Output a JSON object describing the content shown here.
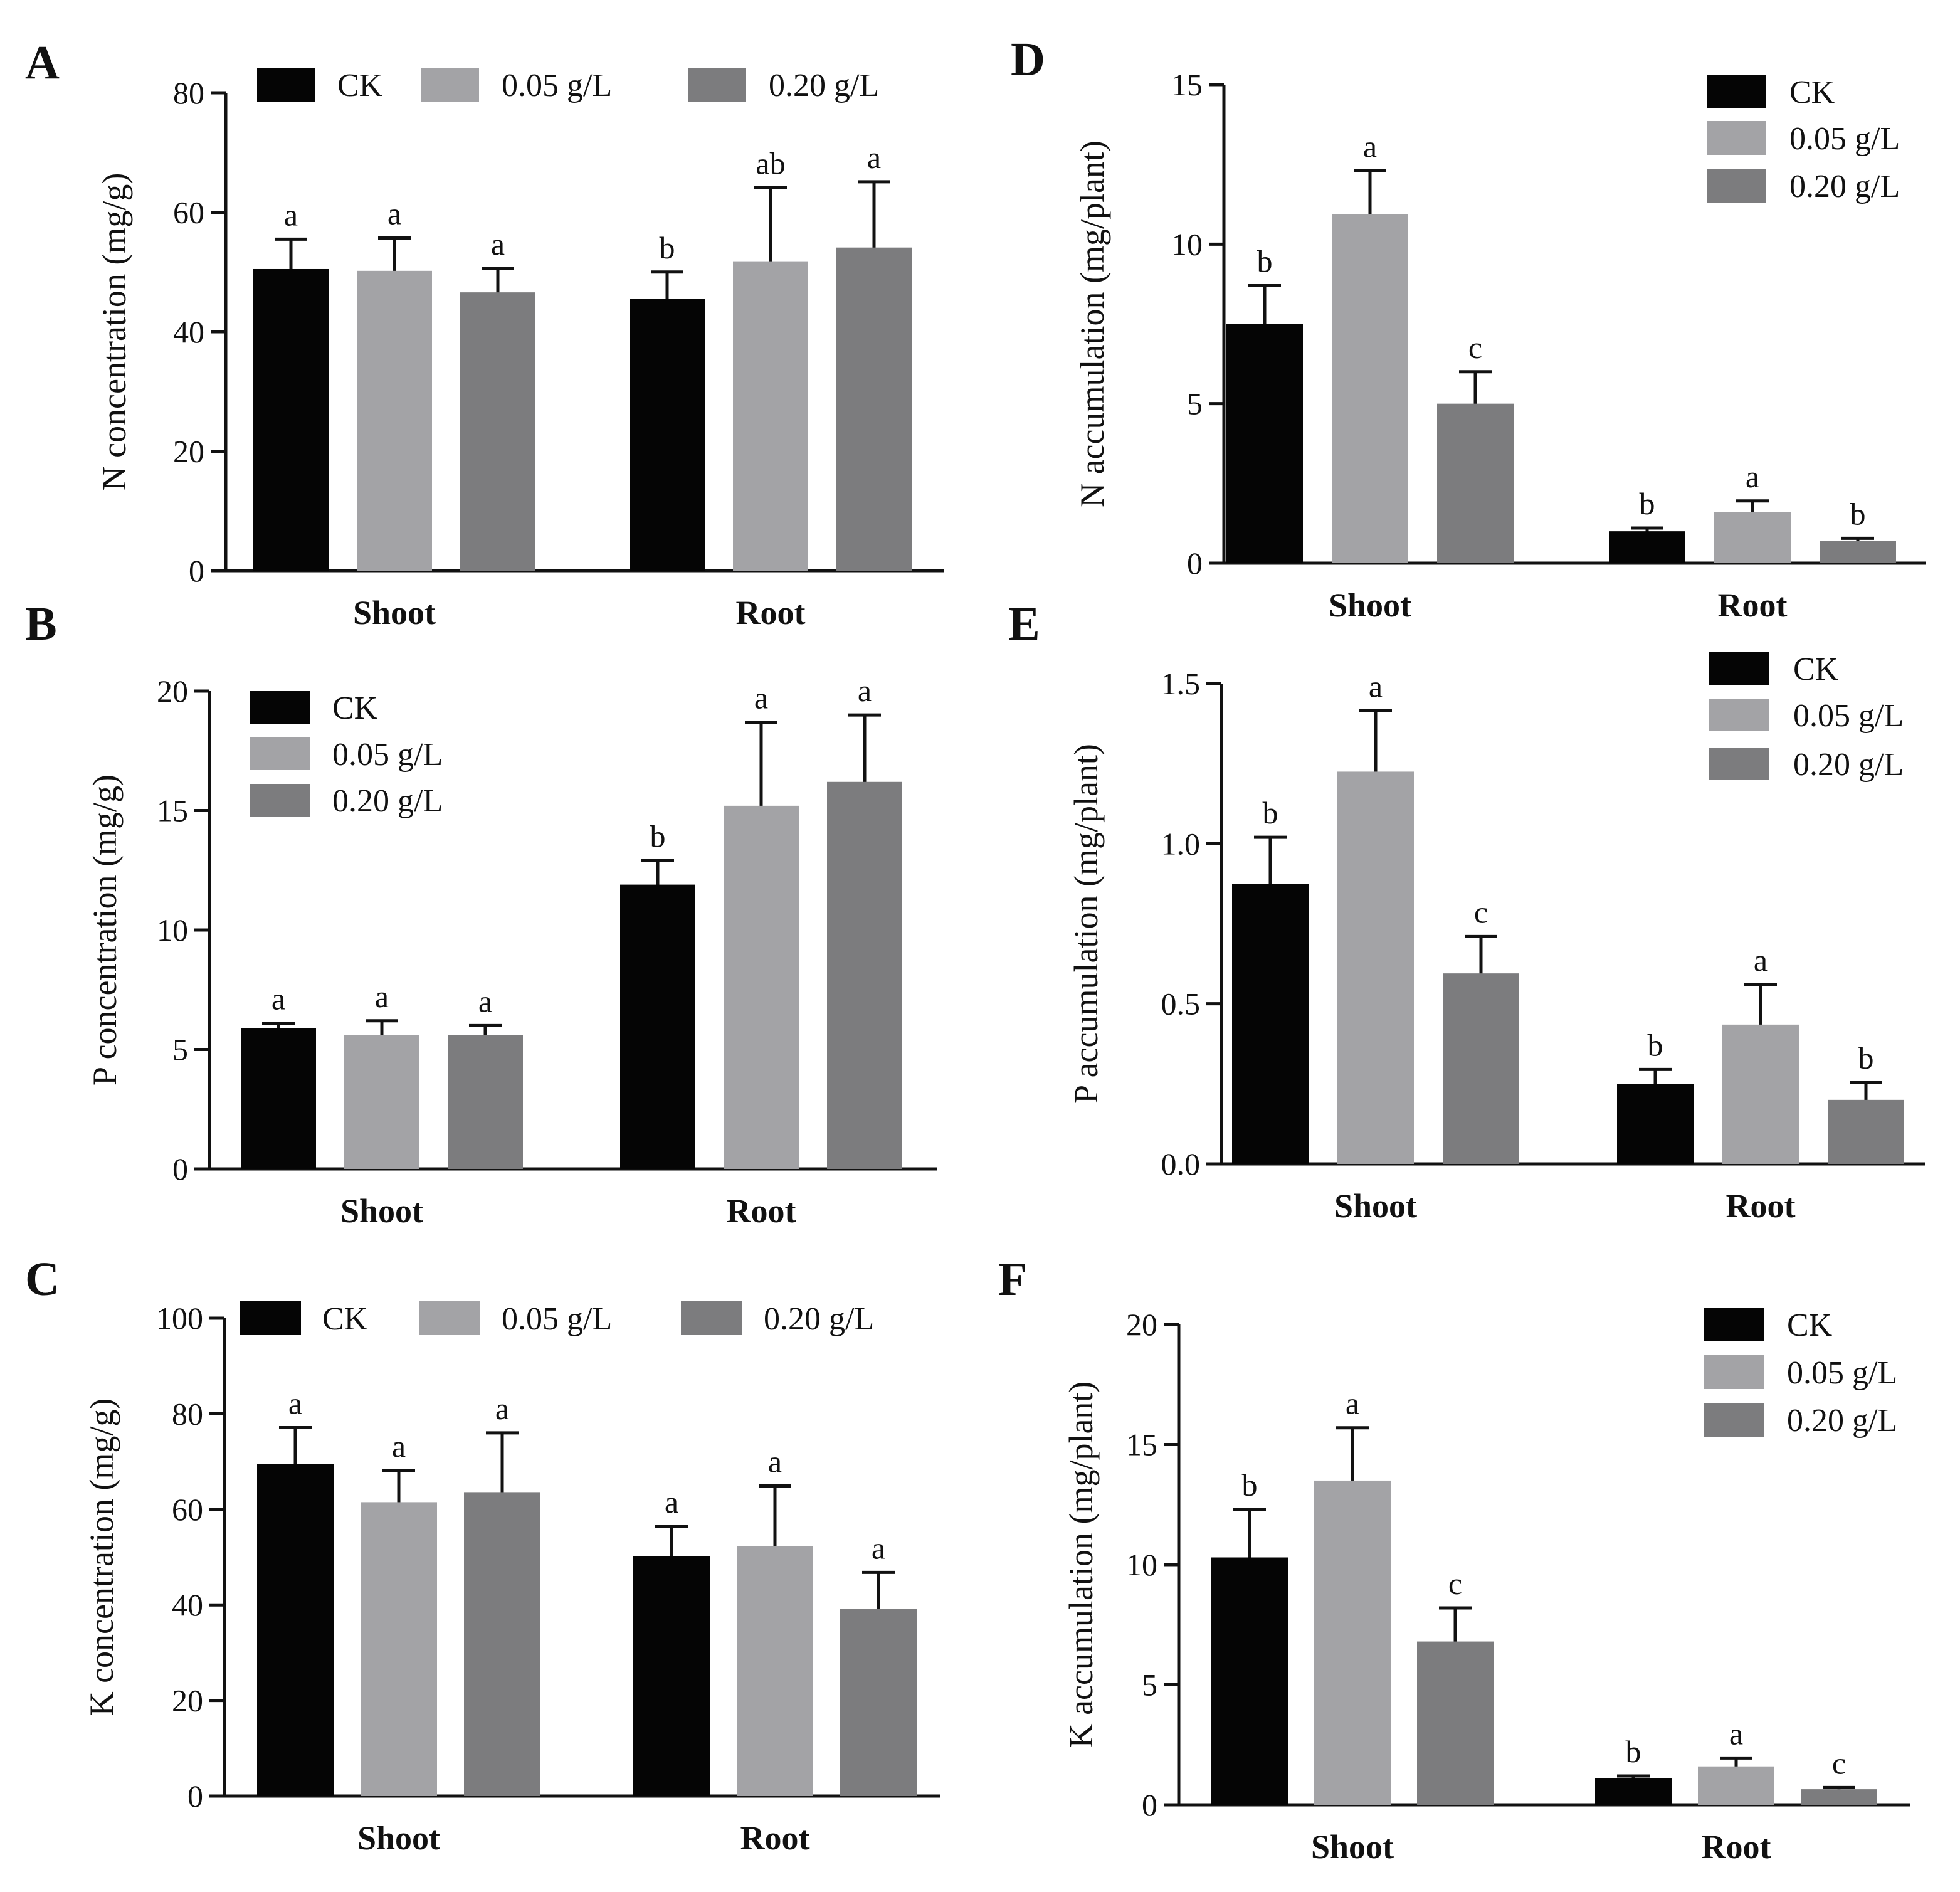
{
  "figure": {
    "colors": {
      "CK": "#050505",
      "0.05 g/L": "#a3a3a6",
      "0.20 g/L": "#7c7c7e"
    }
  },
  "chart_data": [
    {
      "id": "A",
      "type": "bar",
      "panel": "A",
      "title": "",
      "ylabel": "N concentration (mg/g)",
      "xlabel": "",
      "categories": [
        "Shoot",
        "Root"
      ],
      "ylim": [
        0,
        80
      ],
      "yticks": [
        0,
        20,
        40,
        60,
        80
      ],
      "legend": {
        "placement": "top-horizontal",
        "entries": [
          "CK",
          "0.05 g/L",
          "0.20 g/L"
        ]
      },
      "series": [
        {
          "name": "CK",
          "values": [
            50.5,
            45.5
          ],
          "errors": [
            5.0,
            4.5
          ],
          "letters": [
            "a",
            "b"
          ]
        },
        {
          "name": "0.05 g/L",
          "values": [
            50.2,
            51.8
          ],
          "errors": [
            5.5,
            12.3
          ],
          "letters": [
            "a",
            "ab"
          ]
        },
        {
          "name": "0.20 g/L",
          "values": [
            46.6,
            54.1
          ],
          "errors": [
            4.0,
            11.0
          ],
          "letters": [
            "a",
            "a"
          ]
        }
      ]
    },
    {
      "id": "B",
      "type": "bar",
      "panel": "B",
      "title": "",
      "ylabel": "P concentration (mg/g)",
      "xlabel": "",
      "categories": [
        "Shoot",
        "Root"
      ],
      "ylim": [
        0,
        20
      ],
      "yticks": [
        0,
        5,
        10,
        15,
        20
      ],
      "legend": {
        "placement": "top-left-vertical",
        "entries": [
          "CK",
          "0.05 g/L",
          "0.20 g/L"
        ]
      },
      "series": [
        {
          "name": "CK",
          "values": [
            5.9,
            11.9
          ],
          "errors": [
            0.2,
            1.0
          ],
          "letters": [
            "a",
            "b"
          ]
        },
        {
          "name": "0.05 g/L",
          "values": [
            5.6,
            15.2
          ],
          "errors": [
            0.6,
            3.5
          ],
          "letters": [
            "a",
            "a"
          ]
        },
        {
          "name": "0.20 g/L",
          "values": [
            5.6,
            16.2
          ],
          "errors": [
            0.4,
            2.8
          ],
          "letters": [
            "a",
            "a"
          ]
        }
      ]
    },
    {
      "id": "C",
      "type": "bar",
      "panel": "C",
      "title": "",
      "ylabel": "K concentration (mg/g)",
      "xlabel": "",
      "categories": [
        "Shoot",
        "Root"
      ],
      "ylim": [
        0,
        100
      ],
      "yticks": [
        0,
        20,
        40,
        60,
        80,
        100
      ],
      "legend": {
        "placement": "top-horizontal",
        "entries": [
          "CK",
          "0.05 g/L",
          "0.20 g/L"
        ]
      },
      "series": [
        {
          "name": "CK",
          "values": [
            69.5,
            50.2
          ],
          "errors": [
            7.6,
            6.2
          ],
          "letters": [
            "a",
            "a"
          ]
        },
        {
          "name": "0.05 g/L",
          "values": [
            61.5,
            52.3
          ],
          "errors": [
            6.6,
            12.6
          ],
          "letters": [
            "a",
            "a"
          ]
        },
        {
          "name": "0.20 g/L",
          "values": [
            63.6,
            39.2
          ],
          "errors": [
            12.4,
            7.6
          ],
          "letters": [
            "a",
            "a"
          ]
        }
      ]
    },
    {
      "id": "D",
      "type": "bar",
      "panel": "D",
      "title": "",
      "ylabel": "N accumulation (mg/plant)",
      "xlabel": "",
      "categories": [
        "Shoot",
        "Root"
      ],
      "ylim": [
        0,
        15
      ],
      "yticks": [
        0,
        5,
        10,
        15
      ],
      "legend": {
        "placement": "top-right-vertical",
        "entries": [
          "CK",
          "0.05 g/L",
          "0.20 g/L"
        ]
      },
      "series": [
        {
          "name": "CK",
          "values": [
            7.5,
            1.0
          ],
          "errors": [
            1.2,
            0.1
          ],
          "letters": [
            "b",
            "b"
          ]
        },
        {
          "name": "0.05 g/L",
          "values": [
            10.95,
            1.6
          ],
          "errors": [
            1.35,
            0.35
          ],
          "letters": [
            "a",
            "a"
          ]
        },
        {
          "name": "0.20 g/L",
          "values": [
            5.0,
            0.7
          ],
          "errors": [
            1.0,
            0.08
          ],
          "letters": [
            "c",
            "b"
          ]
        }
      ]
    },
    {
      "id": "E",
      "type": "bar",
      "panel": "E",
      "title": "",
      "ylabel": "P accumulation (mg/plant)",
      "xlabel": "",
      "categories": [
        "Shoot",
        "Root"
      ],
      "ylim": [
        0,
        1.5
      ],
      "yticks": [
        "0.0",
        "0.5",
        "1.0",
        "1.5"
      ],
      "legend": {
        "placement": "top-right-vertical",
        "entries": [
          "CK",
          "0.05 g/L",
          "0.20 g/L"
        ]
      },
      "series": [
        {
          "name": "CK",
          "values": [
            0.875,
            0.25
          ],
          "errors": [
            0.145,
            0.045
          ],
          "letters": [
            "b",
            "b"
          ]
        },
        {
          "name": "0.05 g/L",
          "values": [
            1.225,
            0.435
          ],
          "errors": [
            0.19,
            0.125
          ],
          "letters": [
            "a",
            "a"
          ]
        },
        {
          "name": "0.20 g/L",
          "values": [
            0.595,
            0.2
          ],
          "errors": [
            0.115,
            0.055
          ],
          "letters": [
            "c",
            "b"
          ]
        }
      ]
    },
    {
      "id": "F",
      "type": "bar",
      "panel": "F",
      "title": "",
      "ylabel": "K accumulation (mg/plant)",
      "xlabel": "",
      "categories": [
        "Shoot",
        "Root"
      ],
      "ylim": [
        0,
        20
      ],
      "yticks": [
        0,
        5,
        10,
        15,
        20
      ],
      "legend": {
        "placement": "top-right-vertical",
        "entries": [
          "CK",
          "0.05 g/L",
          "0.20 g/L"
        ]
      },
      "series": [
        {
          "name": "CK",
          "values": [
            10.3,
            1.1
          ],
          "errors": [
            2.0,
            0.1
          ],
          "letters": [
            "b",
            "b"
          ]
        },
        {
          "name": "0.05 g/L",
          "values": [
            13.5,
            1.6
          ],
          "errors": [
            2.2,
            0.35
          ],
          "letters": [
            "a",
            "a"
          ]
        },
        {
          "name": "0.20 g/L",
          "values": [
            6.8,
            0.65
          ],
          "errors": [
            1.4,
            0.07
          ],
          "letters": [
            "c",
            "c"
          ]
        }
      ]
    }
  ]
}
